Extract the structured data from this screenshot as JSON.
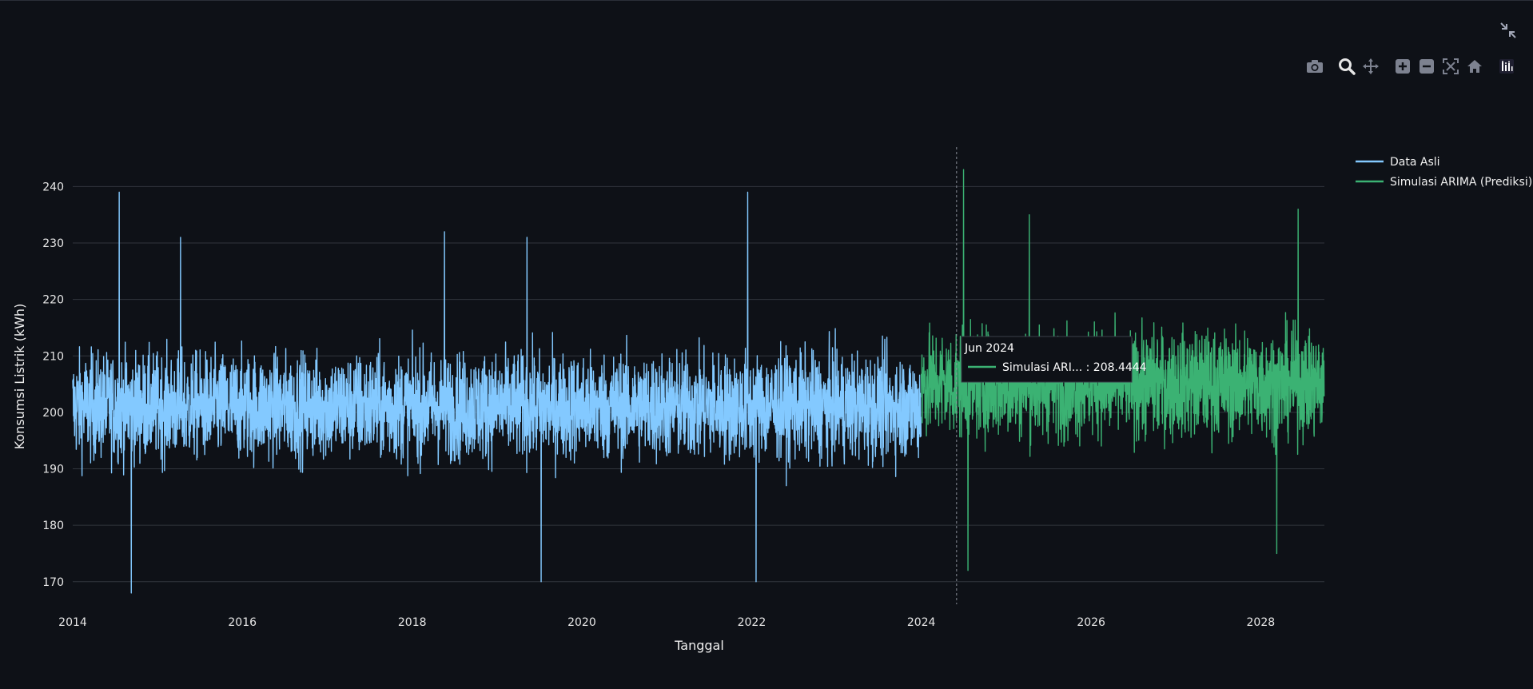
{
  "toolbar": {
    "fullscreen_icon": "collapse-arrows-icon",
    "buttons": [
      {
        "name": "camera-icon",
        "title": "Download plot as a png"
      },
      {
        "name": "zoom-icon",
        "title": "Zoom"
      },
      {
        "name": "pan-icon",
        "title": "Pan"
      },
      {
        "name": "zoom-in-icon",
        "title": "Zoom in"
      },
      {
        "name": "zoom-out-icon",
        "title": "Zoom out"
      },
      {
        "name": "autoscale-icon",
        "title": "Autoscale"
      },
      {
        "name": "home-icon",
        "title": "Reset axes"
      },
      {
        "name": "plotly-logo-icon",
        "title": "Produced with Plotly"
      }
    ]
  },
  "colors": {
    "background": "#0e1117",
    "grid": "#31353d",
    "observed": "#83c9ff",
    "forecast": "#3bb273",
    "hover_bg": "#0e1117"
  },
  "chart_data": {
    "type": "line",
    "xlabel": "Tanggal",
    "ylabel": "Konsumsi Listrik (kWh)",
    "x_ticks": [
      "2014",
      "2016",
      "2018",
      "2020",
      "2022",
      "2024",
      "2026",
      "2028"
    ],
    "y_ticks": [
      170,
      180,
      190,
      200,
      210,
      220,
      230,
      240
    ],
    "xlim": [
      "2014-01-01",
      "2028-10-01"
    ],
    "ylim": [
      166,
      247
    ],
    "grid": true,
    "legend_position": "top-right",
    "series": [
      {
        "name": "Data Asli",
        "color": "#83c9ff",
        "start": "2014-01-01",
        "end": "2023-12-31",
        "frequency": "daily",
        "mean": 201,
        "typical_range": [
          183,
          220
        ],
        "spikes": [
          {
            "date": "2014-07-20",
            "value": 239
          },
          {
            "date": "2014-09-10",
            "value": 168
          },
          {
            "date": "2015-04-10",
            "value": 231
          },
          {
            "date": "2018-05-20",
            "value": 232
          },
          {
            "date": "2019-05-10",
            "value": 231
          },
          {
            "date": "2019-07-10",
            "value": 170
          },
          {
            "date": "2021-12-15",
            "value": 239
          },
          {
            "date": "2022-01-20",
            "value": 170
          }
        ]
      },
      {
        "name": "Simulasi ARIMA (Prediksi)",
        "color": "#3bb273",
        "start": "2024-01-01",
        "end": "2028-09-30",
        "frequency": "daily",
        "mean": 205,
        "typical_range": [
          187,
          224
        ],
        "spikes": [
          {
            "date": "2024-07-01",
            "value": 243
          },
          {
            "date": "2024-07-20",
            "value": 172
          },
          {
            "date": "2025-04-10",
            "value": 235
          },
          {
            "date": "2028-06-10",
            "value": 236
          },
          {
            "date": "2028-03-10",
            "value": 175
          }
        ]
      }
    ],
    "hover": {
      "date": "2024-06-01",
      "title": "Jun 2024",
      "series_label": "Simulasi ARI... : 208.4444",
      "value": 208.4444
    }
  }
}
